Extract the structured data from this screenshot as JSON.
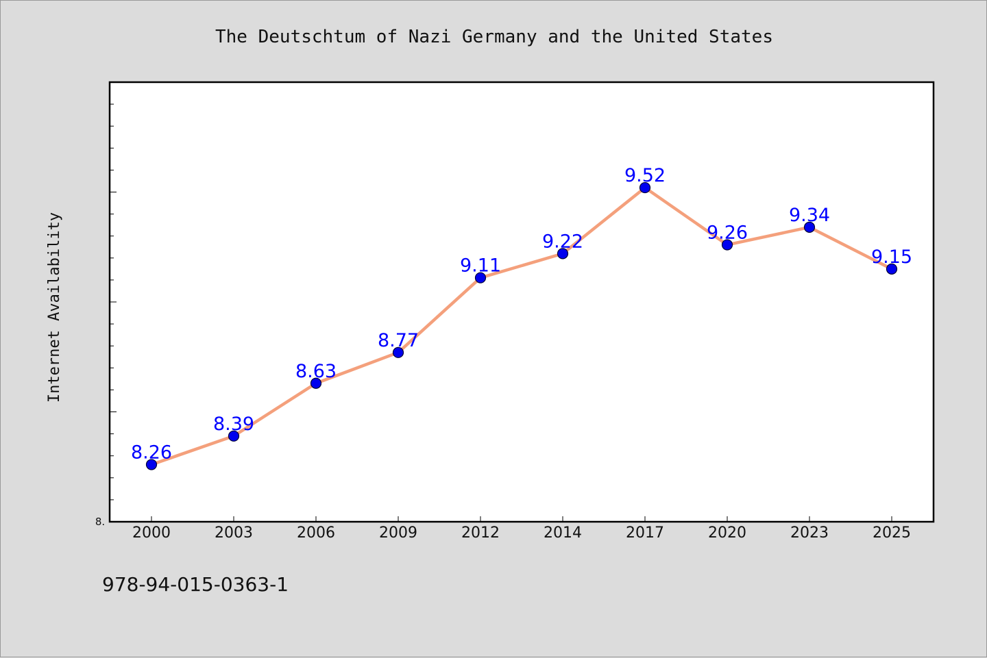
{
  "chart_data": {
    "type": "line",
    "title": "The Deutschtum of Nazi Germany and the United States",
    "xlabel": "",
    "ylabel": "Internet Availability",
    "categories": [
      "2000",
      "2003",
      "2006",
      "2009",
      "2012",
      "2014",
      "2017",
      "2020",
      "2023",
      "2025"
    ],
    "series": [
      {
        "values": [
          8.26,
          8.39,
          8.63,
          8.77,
          9.11,
          9.22,
          9.52,
          9.26,
          9.34,
          9.15
        ]
      }
    ],
    "data_labels": [
      "8.26",
      "8.39",
      "8.63",
      "8.77",
      "9.11",
      "9.22",
      "9.52",
      "9.26",
      "9.34",
      "9.15"
    ],
    "ylim": [
      8.0,
      10.0
    ],
    "y_min_label": "8.",
    "grid": false,
    "legend": "none",
    "colors": {
      "line": "#f4a07c",
      "marker": "#0000ee",
      "marker_edge": "#000033",
      "label": "#0000ff",
      "background": "#dcdcdc",
      "plot_bg": "#ffffff"
    }
  },
  "footer": {
    "code": "978-94-015-0363-1"
  }
}
